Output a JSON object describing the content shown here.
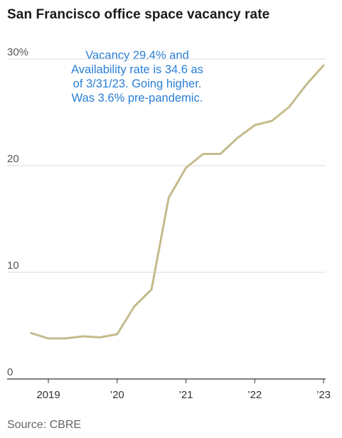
{
  "title": "San Francisco office space vacancy rate",
  "annotation": [
    "Vacancy 29.4% and",
    "Availability rate is 34.6 as",
    "of 3/31/23. Going higher.",
    "Was 3.6% pre-pandemic."
  ],
  "source": "Source: CBRE",
  "colors": {
    "line": "#c4bb8c",
    "grid": "#dddddd",
    "axis": "#333333",
    "annotation": "#2a7fd6"
  },
  "chart_data": {
    "type": "line",
    "title": "San Francisco office space vacancy rate",
    "xlabel": "",
    "ylabel": "",
    "ylim": [
      0,
      30
    ],
    "xlim": [
      2018.75,
      2023.0
    ],
    "grid": true,
    "yticks": [
      {
        "value": 0,
        "label": "0"
      },
      {
        "value": 10,
        "label": "10"
      },
      {
        "value": 20,
        "label": "20"
      },
      {
        "value": 30,
        "label": "30%"
      }
    ],
    "xticks": [
      {
        "value": 2019,
        "label": "2019"
      },
      {
        "value": 2020,
        "label": "’20"
      },
      {
        "value": 2021,
        "label": "’21"
      },
      {
        "value": 2022,
        "label": "’22"
      },
      {
        "value": 2023,
        "label": "’23"
      }
    ],
    "series": [
      {
        "values": [
          {
            "x": 2018.75,
            "y": 4.3
          },
          {
            "x": 2019.0,
            "y": 3.8
          },
          {
            "x": 2019.25,
            "y": 3.8
          },
          {
            "x": 2019.5,
            "y": 4.0
          },
          {
            "x": 2019.75,
            "y": 3.9
          },
          {
            "x": 2020.0,
            "y": 4.2
          },
          {
            "x": 2020.25,
            "y": 6.8
          },
          {
            "x": 2020.5,
            "y": 8.4
          },
          {
            "x": 2020.75,
            "y": 17.0
          },
          {
            "x": 2021.0,
            "y": 19.8
          },
          {
            "x": 2021.25,
            "y": 21.1
          },
          {
            "x": 2021.5,
            "y": 21.1
          },
          {
            "x": 2021.75,
            "y": 22.6
          },
          {
            "x": 2022.0,
            "y": 23.8
          },
          {
            "x": 2022.25,
            "y": 24.2
          },
          {
            "x": 2022.5,
            "y": 25.5
          },
          {
            "x": 2022.75,
            "y": 27.6
          },
          {
            "x": 2023.0,
            "y": 29.4
          }
        ]
      }
    ]
  }
}
